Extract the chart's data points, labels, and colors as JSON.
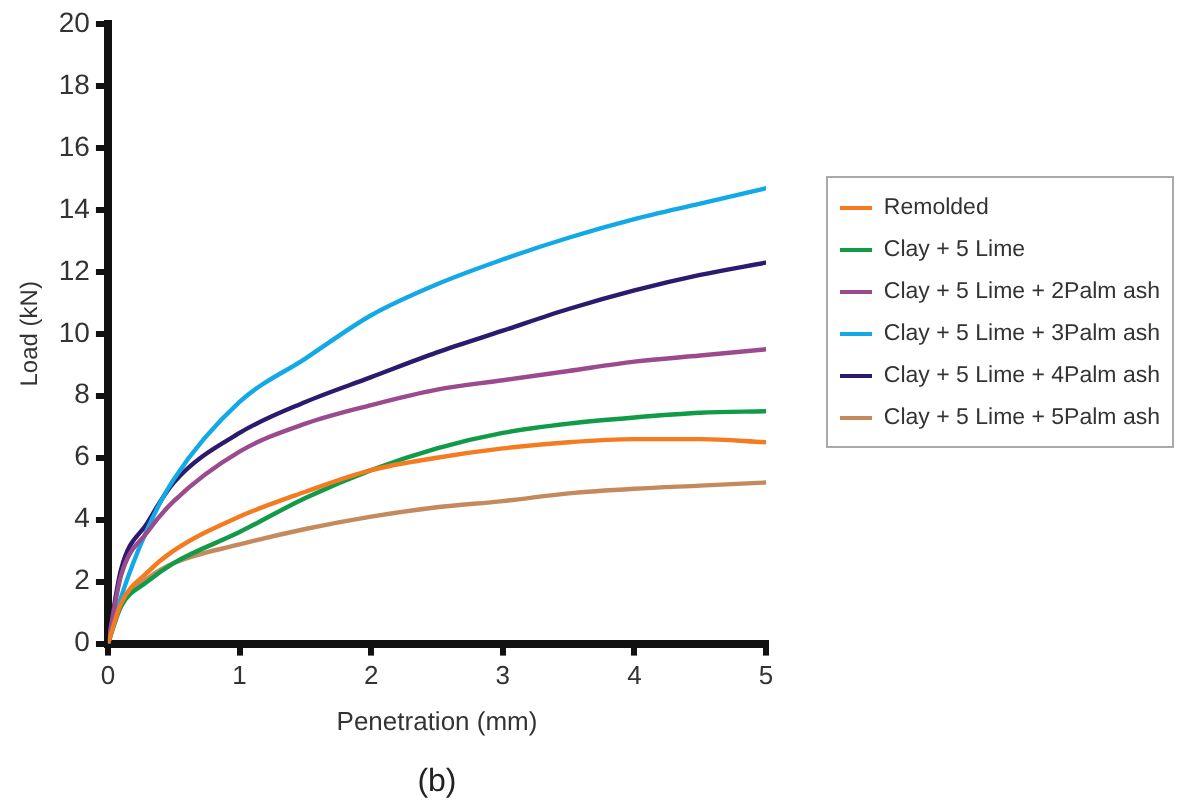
{
  "chart_data": {
    "type": "line",
    "xlabel": "Penetration (mm)",
    "ylabel": "Load (kN)",
    "annotations": [
      "(b)"
    ],
    "x": [
      0,
      0.1,
      0.3,
      0.5,
      1,
      1.5,
      2,
      2.5,
      3,
      3.5,
      4,
      4.5,
      5
    ],
    "series": [
      {
        "name": "Remolded",
        "color": "#f47b20",
        "values": [
          0,
          1.3,
          2.3,
          3.0,
          4.1,
          4.9,
          5.6,
          6.0,
          6.3,
          6.5,
          6.6,
          6.6,
          6.5
        ]
      },
      {
        "name": "Clay + 5 Lime",
        "color": "#0f9b48",
        "values": [
          0,
          1.2,
          2.0,
          2.6,
          3.6,
          4.7,
          5.6,
          6.3,
          6.8,
          7.1,
          7.3,
          7.45,
          7.5
        ]
      },
      {
        "name": "Clay + 5 Lime + 2Palm ash",
        "color": "#9b4a8e",
        "values": [
          0,
          2.2,
          3.6,
          4.6,
          6.2,
          7.1,
          7.7,
          8.2,
          8.5,
          8.8,
          9.1,
          9.3,
          9.5
        ]
      },
      {
        "name": "Clay + 5 Lime + 3Palm ash",
        "color": "#12a9e6",
        "values": [
          0,
          1.5,
          3.7,
          5.3,
          7.8,
          9.2,
          10.6,
          11.6,
          12.4,
          13.1,
          13.7,
          14.2,
          14.7
        ]
      },
      {
        "name": "Clay + 5 Lime + 4Palm ash",
        "color": "#2b1a6e",
        "values": [
          0,
          2.4,
          3.9,
          5.2,
          6.8,
          7.8,
          8.6,
          9.4,
          10.1,
          10.8,
          11.4,
          11.9,
          12.3
        ]
      },
      {
        "name": "Clay + 5 Lime + 5Palm ash",
        "color": "#c48a5e",
        "values": [
          0,
          1.3,
          2.1,
          2.6,
          3.2,
          3.7,
          4.1,
          4.4,
          4.6,
          4.85,
          5.0,
          5.1,
          5.2
        ]
      }
    ],
    "xlim": [
      0,
      5
    ],
    "xticks": [
      0,
      1,
      2,
      3,
      4,
      5
    ],
    "ylim": [
      0,
      20
    ],
    "yticks": [
      0,
      2,
      4,
      6,
      8,
      10,
      12,
      14,
      16,
      18,
      20
    ],
    "grid": false,
    "legend": "right",
    "marker": "none",
    "line_style": "solid"
  }
}
